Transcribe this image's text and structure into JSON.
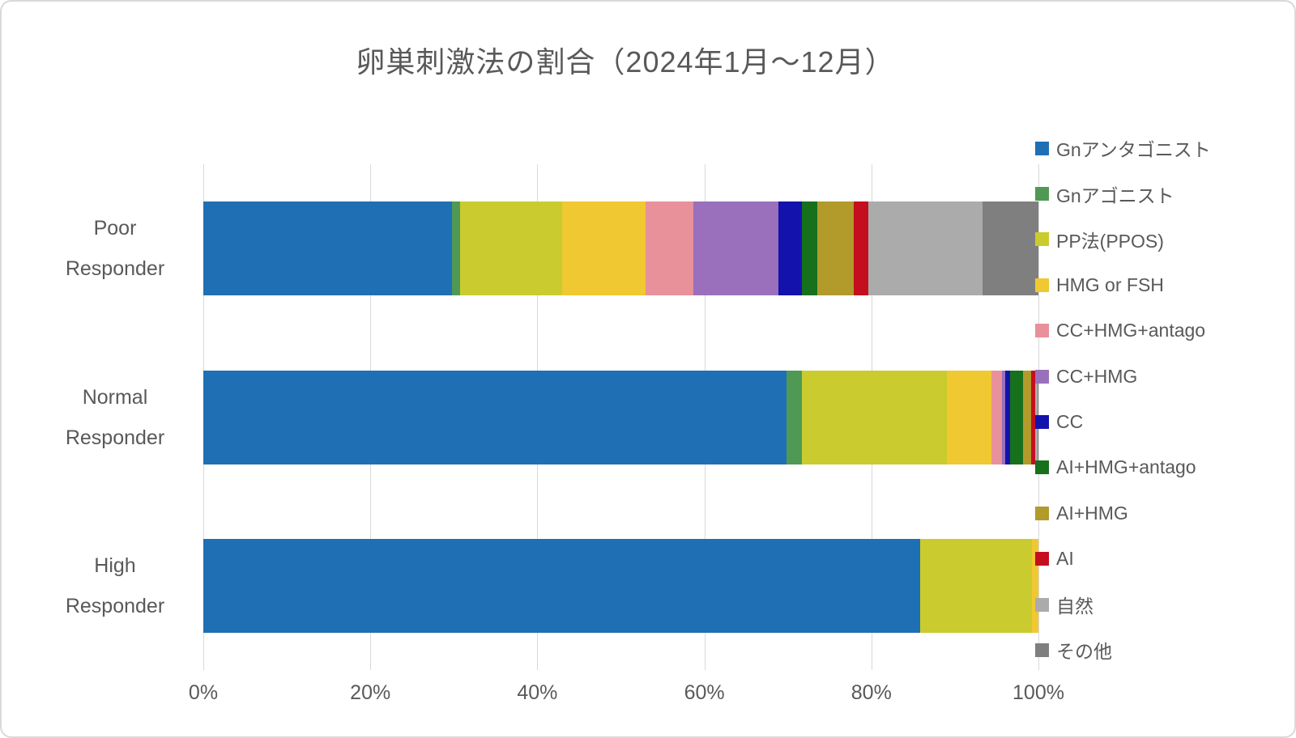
{
  "chart_data": {
    "type": "bar",
    "orientation": "horizontal-stacked",
    "title": "卵巣刺激法の割合（2024年1月～12月）",
    "categories": [
      "Poor Responder",
      "Normal Responder",
      "High Responder"
    ],
    "series": [
      {
        "name": "Gnアンタゴニスト",
        "color": "#1F6FB4",
        "values": [
          29.8,
          69.8,
          85.8
        ]
      },
      {
        "name": "Gnアゴニスト",
        "color": "#4F9955",
        "values": [
          0.9,
          1.9,
          0
        ]
      },
      {
        "name": "PP法(PPOS)",
        "color": "#C9CB2F",
        "values": [
          12.3,
          17.3,
          13.4
        ]
      },
      {
        "name": "HMG or FSH",
        "color": "#F0C832",
        "values": [
          10.0,
          5.4,
          0.8
        ]
      },
      {
        "name": "CC+HMG+antago",
        "color": "#E8919B",
        "values": [
          5.7,
          1.2,
          0
        ]
      },
      {
        "name": "CC+HMG",
        "color": "#9A70BC",
        "values": [
          10.2,
          0.4,
          0
        ]
      },
      {
        "name": "CC",
        "color": "#1412AC",
        "values": [
          2.8,
          0.6,
          0
        ]
      },
      {
        "name": "AI+HMG+antago",
        "color": "#17701C",
        "values": [
          1.8,
          1.6,
          0
        ]
      },
      {
        "name": "AI+HMG",
        "color": "#B29A2B",
        "values": [
          4.4,
          0.9,
          0
        ]
      },
      {
        "name": "AI",
        "color": "#C40F1E",
        "values": [
          1.7,
          0.5,
          0
        ]
      },
      {
        "name": "自然",
        "color": "#ABABAB",
        "values": [
          13.7,
          0.3,
          0
        ]
      },
      {
        "name": "その他",
        "color": "#7F7F7F",
        "values": [
          6.7,
          0.1,
          0
        ]
      }
    ],
    "x_ticks": [
      "0%",
      "20%",
      "40%",
      "60%",
      "80%",
      "100%"
    ],
    "xlim": [
      0,
      100
    ],
    "grid": true,
    "legend_position": "right",
    "text_color": "#595959",
    "gridline_color": "#D9D9D9"
  }
}
